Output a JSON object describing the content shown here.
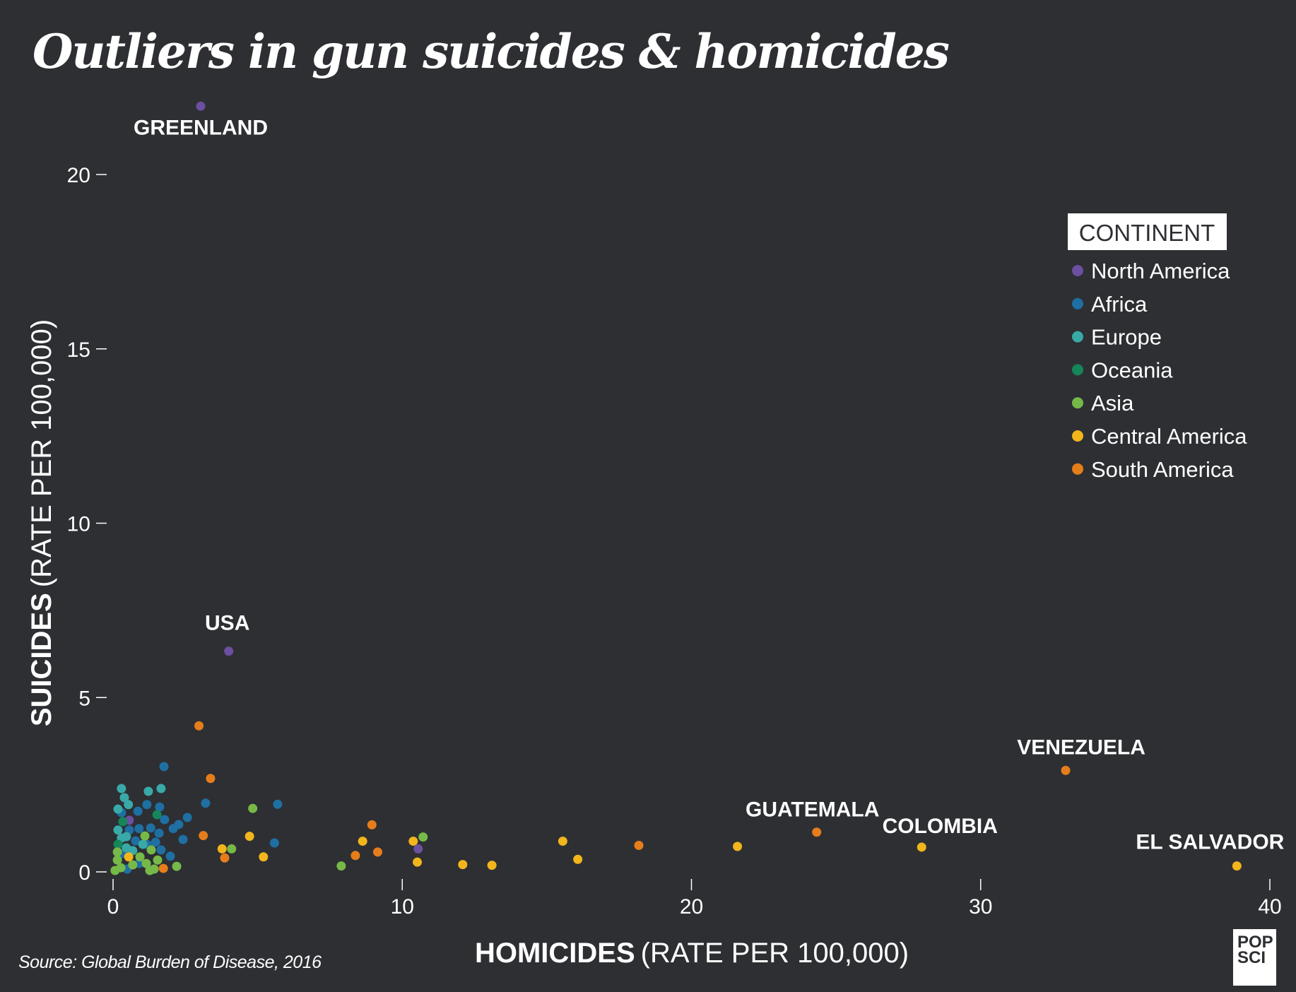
{
  "chart_data": {
    "type": "scatter",
    "title": "Outliers in gun suicides & homicides",
    "xlabel_bold": "HOMICIDES",
    "xlabel_rest": "(RATE PER 100,000)",
    "ylabel_bold": "SUICIDES",
    "ylabel_rest": "(RATE PER 100,000)",
    "xlim": [
      0,
      40
    ],
    "ylim": [
      0,
      22
    ],
    "xticks": [
      "0",
      "10",
      "20",
      "30",
      "40"
    ],
    "xtick_values": [
      0,
      10,
      20,
      30,
      40
    ],
    "yticks": [
      "0",
      "5",
      "10",
      "15",
      "20"
    ],
    "ytick_values": [
      0,
      5,
      10,
      15,
      20
    ],
    "grid": false,
    "legend": {
      "title": "CONTINENT",
      "placement": "right",
      "entries": [
        {
          "name": "North America",
          "color": "#6b4fa0"
        },
        {
          "name": "Africa",
          "color": "#1f6fa3"
        },
        {
          "name": "Europe",
          "color": "#39a9a8"
        },
        {
          "name": "Oceania",
          "color": "#14865a"
        },
        {
          "name": "Asia",
          "color": "#76b948"
        },
        {
          "name": "Central America",
          "color": "#f2b51c"
        },
        {
          "name": "South America",
          "color": "#e67d1b"
        }
      ]
    },
    "series": [
      {
        "name": "North America",
        "points": [
          [
            3.03,
            21.96
          ],
          [
            4.0,
            6.33
          ],
          [
            10.55,
            0.66
          ],
          [
            0.56,
            1.48
          ]
        ]
      },
      {
        "name": "Africa",
        "points": [
          [
            1.76,
            3.02
          ],
          [
            3.2,
            1.97
          ],
          [
            5.69,
            1.94
          ],
          [
            5.58,
            0.83
          ],
          [
            1.17,
            1.93
          ],
          [
            1.61,
            1.86
          ],
          [
            0.86,
            1.74
          ],
          [
            0.29,
            1.7
          ],
          [
            1.78,
            1.5
          ],
          [
            2.57,
            1.56
          ],
          [
            2.27,
            1.36
          ],
          [
            2.08,
            1.24
          ],
          [
            0.9,
            1.24
          ],
          [
            1.3,
            1.26
          ],
          [
            0.56,
            1.2
          ],
          [
            1.59,
            1.11
          ],
          [
            2.42,
            0.93
          ],
          [
            0.78,
            0.89
          ],
          [
            1.47,
            0.85
          ],
          [
            1.17,
            0.79
          ],
          [
            1.66,
            0.63
          ],
          [
            0.32,
            0.53
          ],
          [
            1.98,
            0.45
          ],
          [
            0.9,
            0.24
          ],
          [
            0.49,
            0.08
          ]
        ]
      },
      {
        "name": "Europe",
        "points": [
          [
            0.29,
            2.39
          ],
          [
            1.22,
            2.31
          ],
          [
            1.66,
            2.39
          ],
          [
            0.39,
            2.13
          ],
          [
            0.53,
            1.93
          ],
          [
            0.17,
            1.8
          ],
          [
            0.17,
            1.2
          ],
          [
            0.29,
            0.97
          ],
          [
            0.46,
            1.01
          ],
          [
            1.03,
            0.79
          ],
          [
            0.46,
            0.69
          ],
          [
            0.68,
            0.61
          ]
        ]
      },
      {
        "name": "Oceania",
        "points": [
          [
            1.52,
            1.64
          ],
          [
            0.34,
            1.44
          ],
          [
            0.17,
            0.79
          ]
        ]
      },
      {
        "name": "Asia",
        "points": [
          [
            4.1,
            0.66
          ],
          [
            4.83,
            1.82
          ],
          [
            7.89,
            0.17
          ],
          [
            10.72,
            1.0
          ],
          [
            1.1,
            1.03
          ],
          [
            1.32,
            0.63
          ],
          [
            0.15,
            0.57
          ],
          [
            0.93,
            0.43
          ],
          [
            1.54,
            0.34
          ],
          [
            0.15,
            0.34
          ],
          [
            1.15,
            0.24
          ],
          [
            0.68,
            0.2
          ],
          [
            2.2,
            0.16
          ],
          [
            0.07,
            0.04
          ],
          [
            0.27,
            0.12
          ],
          [
            1.27,
            0.04
          ],
          [
            1.42,
            0.08
          ]
        ]
      },
      {
        "name": "Central America",
        "points": [
          [
            3.77,
            0.66
          ],
          [
            4.72,
            1.02
          ],
          [
            5.2,
            0.43
          ],
          [
            8.63,
            0.88
          ],
          [
            10.38,
            0.88
          ],
          [
            10.52,
            0.28
          ],
          [
            12.09,
            0.21
          ],
          [
            13.1,
            0.19
          ],
          [
            15.55,
            0.88
          ],
          [
            16.07,
            0.36
          ],
          [
            21.59,
            0.73
          ],
          [
            27.96,
            0.71
          ],
          [
            38.86,
            0.17
          ],
          [
            0.54,
            0.43
          ]
        ]
      },
      {
        "name": "South America",
        "points": [
          [
            2.97,
            4.19
          ],
          [
            3.37,
            2.68
          ],
          [
            3.12,
            1.04
          ],
          [
            3.86,
            0.4
          ],
          [
            1.74,
            0.1
          ],
          [
            8.38,
            0.47
          ],
          [
            8.95,
            1.35
          ],
          [
            9.15,
            0.57
          ],
          [
            18.18,
            0.76
          ],
          [
            24.33,
            1.14
          ],
          [
            32.94,
            2.91
          ]
        ]
      }
    ],
    "annotations": [
      {
        "text": "GREENLAND",
        "x": 3.03,
        "y": 21.96
      },
      {
        "text": "USA",
        "x": 4.0,
        "y": 6.33
      },
      {
        "text": "GUATEMALA",
        "x": 24.33,
        "y": 1.14
      },
      {
        "text": "COLOMBIA",
        "x": 27.96,
        "y": 0.71
      },
      {
        "text": "VENEZUELA",
        "x": 32.94,
        "y": 2.91
      },
      {
        "text": "EL SALVADOR",
        "x": 38.86,
        "y": 0.17
      }
    ]
  },
  "source": "Source: Global Burden of Disease, 2016",
  "logo": {
    "line1": "POP",
    "line2": "SCI"
  },
  "colors": {
    "background": "#2d2f33",
    "text": "#ffffff"
  }
}
